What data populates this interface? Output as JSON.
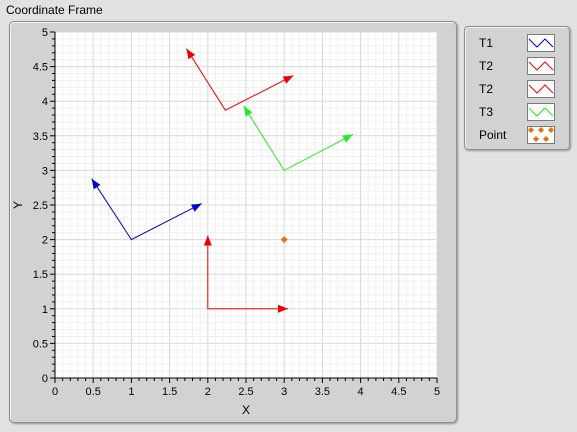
{
  "frame_title": "Coordinate Frame",
  "chart_data": {
    "type": "line",
    "xlabel": "X",
    "ylabel": "Y",
    "xlim": [
      0,
      5
    ],
    "ylim": [
      0,
      5
    ],
    "x_ticks": [
      "0",
      "0.5",
      "1",
      "1.5",
      "2",
      "2.5",
      "3",
      "3.5",
      "4",
      "4.5",
      "5"
    ],
    "y_ticks": [
      "0",
      "0.5",
      "1",
      "1.5",
      "2",
      "2.5",
      "3",
      "3.5",
      "4",
      "4.5",
      "5"
    ],
    "grid": true,
    "legend_position": "right",
    "series": [
      {
        "name": "T1",
        "color": "#0000cc",
        "kind": "frame",
        "points": [
          [
            0.48,
            2.88
          ],
          [
            1.0,
            2.0
          ],
          [
            1.92,
            2.52
          ]
        ]
      },
      {
        "name": "T2",
        "color": "#ee0000",
        "kind": "frame",
        "points": [
          [
            2.0,
            2.06
          ],
          [
            2.0,
            1.0
          ],
          [
            3.05,
            1.0
          ]
        ]
      },
      {
        "name": "T2",
        "color": "#ee0000",
        "kind": "frame",
        "points": [
          [
            1.72,
            4.76
          ],
          [
            2.23,
            3.87
          ],
          [
            3.12,
            4.37
          ]
        ]
      },
      {
        "name": "T3",
        "color": "#22ee22",
        "kind": "frame",
        "points": [
          [
            2.47,
            3.93
          ],
          [
            3.0,
            3.0
          ],
          [
            3.9,
            3.52
          ]
        ]
      },
      {
        "name": "Point",
        "color": "#e87010",
        "kind": "point",
        "points": [
          [
            3.0,
            2.0
          ]
        ]
      }
    ]
  }
}
